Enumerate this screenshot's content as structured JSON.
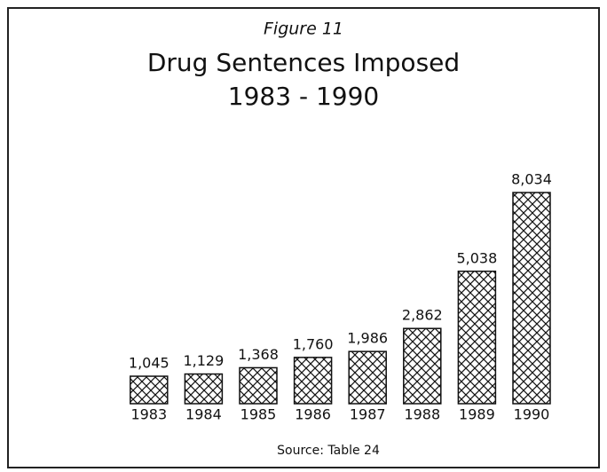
{
  "chart_data": {
    "type": "bar",
    "title": "Figure 11",
    "subtitle": "Drug Sentences Imposed",
    "subtitle2": "1983 - 1990",
    "categories": [
      "1983",
      "1984",
      "1985",
      "1986",
      "1987",
      "1988",
      "1989",
      "1990"
    ],
    "values": [
      1045,
      1129,
      1368,
      1760,
      1986,
      2862,
      5038,
      8034
    ],
    "value_labels": [
      "1,045",
      "1,129",
      "1,368",
      "1,760",
      "1,986",
      "2,862",
      "5,038",
      "8,034"
    ],
    "color": "#111111",
    "source": "Source: Table 24"
  }
}
